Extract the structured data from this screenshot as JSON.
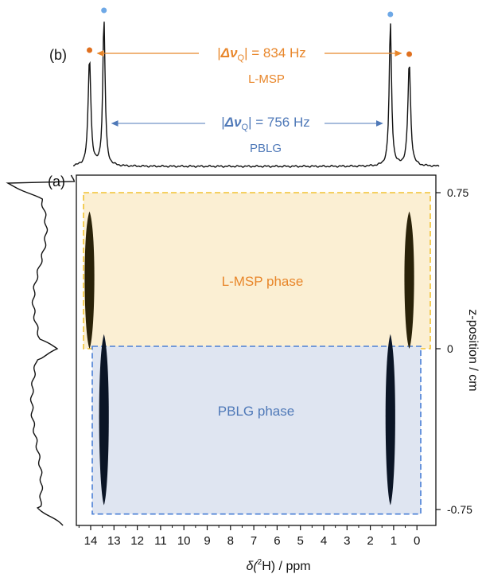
{
  "colors": {
    "lmsp": "#e8862a",
    "pblg": "#4f79b8",
    "lmsp_fill": "#fbefd3",
    "lmsp_border": "#f1c232",
    "pblg_fill": "#dfe5f1",
    "pblg_border": "#4a7fd6",
    "peak_dark": "#2a2208",
    "peak_blue_dark": "#0b1526",
    "dot_orange": "#e0701f",
    "dot_blue": "#6ea8e6"
  },
  "panels": {
    "a_label": "(a)",
    "b_label": "(b)"
  },
  "annotations": {
    "lmsp_splitting_prefix": "|",
    "lmsp_splitting_symbol": "Δν",
    "lmsp_splitting_sub": "Q",
    "lmsp_splitting_suffix": "| = 834 Hz",
    "lmsp_name": "L-MSP",
    "pblg_splitting_prefix": "|",
    "pblg_splitting_symbol": "Δν",
    "pblg_splitting_sub": "Q",
    "pblg_splitting_suffix": "| = 756 Hz",
    "pblg_name": "PBLG",
    "lmsp_phase": "L-MSP phase",
    "pblg_phase": "PBLG phase"
  },
  "chart_data": {
    "type": "line",
    "xlabel_main": "δ(",
    "xlabel_sup": "2",
    "xlabel_end": "H) / ppm",
    "ylabel": "z-position / cm",
    "xlim": [
      14.5,
      -0.1
    ],
    "ylim": [
      -0.8,
      0.8
    ],
    "x_ticks": [
      "14",
      "13",
      "12",
      "11",
      "10",
      "9",
      "8",
      "7",
      "6",
      "5",
      "4",
      "3",
      "2",
      "1",
      "0"
    ],
    "y_ticks": [
      "0.75",
      "0",
      "-0.75"
    ],
    "lmsp_peaks_ppm": [
      14.05,
      0.33
    ],
    "pblg_peaks_ppm": [
      13.43,
      1.14
    ],
    "lmsp_splitting_hz": 834,
    "pblg_splitting_hz": 756,
    "lmsp_z_range": [
      0.0,
      0.66
    ],
    "pblg_z_range": [
      -0.73,
      0.07
    ],
    "lmsp_region_z": [
      0.0,
      0.75
    ],
    "pblg_region_z": [
      -0.76,
      0.0
    ]
  }
}
